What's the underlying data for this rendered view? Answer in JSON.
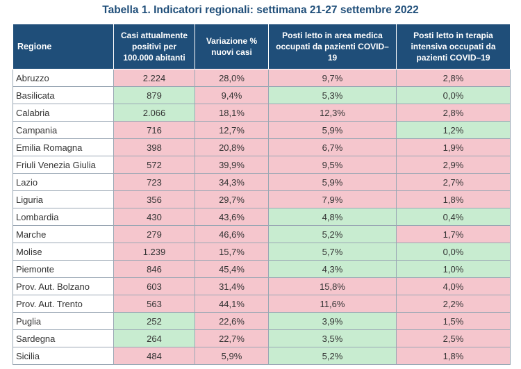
{
  "title": "Tabella 1. Indicatori regionali: settimana 21-27 settembre 2022",
  "colors": {
    "header_bg": "#1f4e79",
    "red_cell": "#f5c6cd",
    "green_cell": "#c8ecd0"
  },
  "headers": [
    "Regione",
    "Casi attualmente positivi per 100.000 abitanti",
    "Variazione % nuovi casi",
    "Posti letto in area medica occupati da pazienti COVID–19",
    "Posti letto in terapia intensiva occupati da pazienti COVID–19"
  ],
  "rows": [
    {
      "region": "Abruzzo",
      "cases": "2.224",
      "variation": "28,0%",
      "medical": "9,7%",
      "icu": "2,8%",
      "status": [
        "r",
        "r",
        "r",
        "r"
      ]
    },
    {
      "region": "Basilicata",
      "cases": "879",
      "variation": "9,4%",
      "medical": "5,3%",
      "icu": "0,0%",
      "status": [
        "g",
        "r",
        "g",
        "g"
      ]
    },
    {
      "region": "Calabria",
      "cases": "2.066",
      "variation": "18,1%",
      "medical": "12,3%",
      "icu": "2,8%",
      "status": [
        "g",
        "r",
        "r",
        "r"
      ]
    },
    {
      "region": "Campania",
      "cases": "716",
      "variation": "12,7%",
      "medical": "5,9%",
      "icu": "1,2%",
      "status": [
        "r",
        "r",
        "r",
        "g"
      ]
    },
    {
      "region": "Emilia Romagna",
      "cases": "398",
      "variation": "20,8%",
      "medical": "6,7%",
      "icu": "1,9%",
      "status": [
        "r",
        "r",
        "r",
        "r"
      ]
    },
    {
      "region": "Friuli Venezia Giulia",
      "cases": "572",
      "variation": "39,9%",
      "medical": "9,5%",
      "icu": "2,9%",
      "status": [
        "r",
        "r",
        "r",
        "r"
      ]
    },
    {
      "region": "Lazio",
      "cases": "723",
      "variation": "34,3%",
      "medical": "5,9%",
      "icu": "2,7%",
      "status": [
        "r",
        "r",
        "r",
        "r"
      ]
    },
    {
      "region": "Liguria",
      "cases": "356",
      "variation": "29,7%",
      "medical": "7,9%",
      "icu": "1,8%",
      "status": [
        "r",
        "r",
        "r",
        "r"
      ]
    },
    {
      "region": "Lombardia",
      "cases": "430",
      "variation": "43,6%",
      "medical": "4,8%",
      "icu": "0,4%",
      "status": [
        "r",
        "r",
        "g",
        "g"
      ]
    },
    {
      "region": "Marche",
      "cases": "279",
      "variation": "46,6%",
      "medical": "5,2%",
      "icu": "1,7%",
      "status": [
        "r",
        "r",
        "g",
        "r"
      ]
    },
    {
      "region": "Molise",
      "cases": "1.239",
      "variation": "15,7%",
      "medical": "5,7%",
      "icu": "0,0%",
      "status": [
        "r",
        "r",
        "g",
        "g"
      ]
    },
    {
      "region": "Piemonte",
      "cases": "846",
      "variation": "45,4%",
      "medical": "4,3%",
      "icu": "1,0%",
      "status": [
        "r",
        "r",
        "g",
        "g"
      ]
    },
    {
      "region": "Prov. Aut. Bolzano",
      "cases": "603",
      "variation": "31,4%",
      "medical": "15,8%",
      "icu": "4,0%",
      "status": [
        "r",
        "r",
        "r",
        "r"
      ]
    },
    {
      "region": "Prov. Aut. Trento",
      "cases": "563",
      "variation": "44,1%",
      "medical": "11,6%",
      "icu": "2,2%",
      "status": [
        "r",
        "r",
        "r",
        "r"
      ]
    },
    {
      "region": "Puglia",
      "cases": "252",
      "variation": "22,6%",
      "medical": "3,9%",
      "icu": "1,5%",
      "status": [
        "g",
        "r",
        "g",
        "r"
      ]
    },
    {
      "region": "Sardegna",
      "cases": "264",
      "variation": "22,7%",
      "medical": "3,5%",
      "icu": "2,5%",
      "status": [
        "g",
        "r",
        "g",
        "r"
      ]
    },
    {
      "region": "Sicilia",
      "cases": "484",
      "variation": "5,9%",
      "medical": "5,2%",
      "icu": "1,8%",
      "status": [
        "r",
        "r",
        "g",
        "r"
      ]
    }
  ]
}
